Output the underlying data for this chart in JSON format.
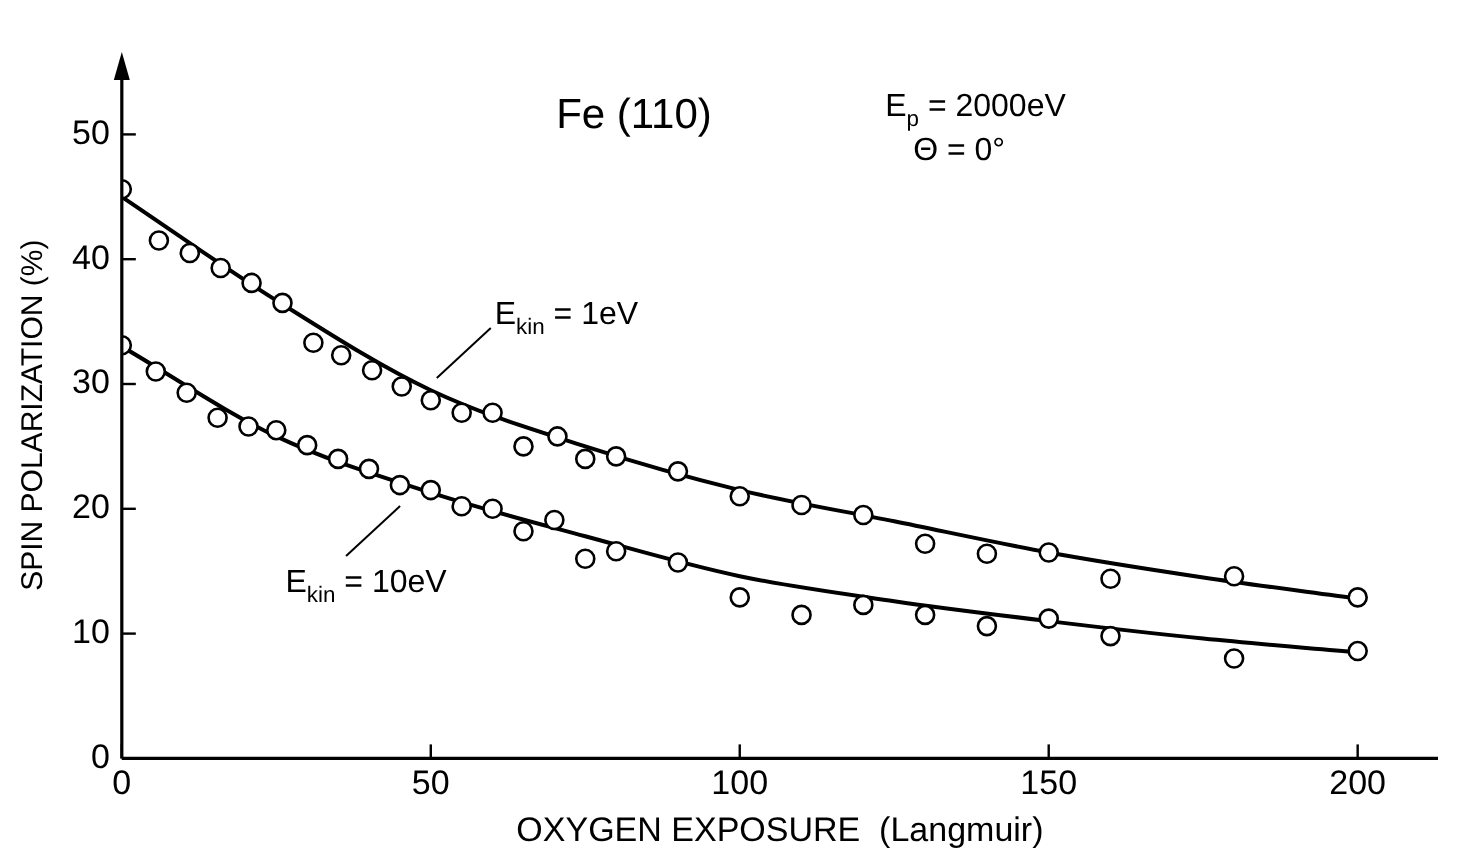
{
  "chart_data": {
    "type": "scatter",
    "title": "Fe (110)",
    "xlabel": "OXYGEN EXPOSURE  (Langmuir)",
    "ylabel": "SPIN POLARIZATION (%)",
    "xlim": [
      0,
      213
    ],
    "ylim": [
      0,
      55
    ],
    "xticks": [
      0,
      50,
      100,
      150,
      200
    ],
    "yticks": [
      0,
      10,
      20,
      30,
      40,
      50
    ],
    "grid": false,
    "legend": false,
    "marker": "circle",
    "annotations": [
      "E$_{p}$ = 2000eV",
      "Θ = 0°",
      {
        "text": "E$_{kin}$ = 1eV",
        "x": 50,
        "y": 30
      },
      {
        "text": "E$_{kin}$ = 10eV",
        "x": 46,
        "y": 20.7
      }
    ],
    "series": [
      {
        "color": "#000000",
        "x": [
          0,
          6,
          11,
          16,
          21,
          26,
          31,
          35.5,
          40.5,
          45.3,
          50,
          55,
          60,
          65,
          70.5,
          75,
          80,
          90,
          100,
          110,
          120,
          130,
          140,
          150,
          160,
          180,
          200
        ],
        "values": [
          45.6,
          41.5,
          40.5,
          39.3,
          38.1,
          36.5,
          33.3,
          32.3,
          31.1,
          29.8,
          28.7,
          27.7,
          27.7,
          25.0,
          25.8,
          24.0,
          24.2,
          23.0,
          21.0,
          20.3,
          19.5,
          17.2,
          16.4,
          16.5,
          14.4,
          14.6,
          12.9
        ]
      },
      {
        "color": "#000000",
        "x": [
          0,
          5.5,
          10.5,
          15.5,
          20.5,
          25,
          30,
          35,
          40,
          45,
          50,
          55,
          60,
          65,
          70,
          75,
          80,
          90,
          100,
          110,
          120,
          130,
          140,
          150,
          160,
          180,
          200
        ],
        "values": [
          33.1,
          31.0,
          29.3,
          27.3,
          26.6,
          26.3,
          25.1,
          24.0,
          23.2,
          21.9,
          21.5,
          20.2,
          20.0,
          18.2,
          19.1,
          16.0,
          16.6,
          15.7,
          12.9,
          11.5,
          12.3,
          11.5,
          10.6,
          11.2,
          9.8,
          8.0,
          8.6
        ]
      },
      {
        "type": "line",
        "marker": "none",
        "line_style": "solid",
        "color": "#000000",
        "x": [
          0,
          25,
          50,
          75,
          100,
          125,
          150,
          175,
          200
        ],
        "values": [
          45,
          36.7,
          29.5,
          25,
          21.5,
          19,
          16.5,
          14.5,
          12.8
        ]
      },
      {
        "type": "line",
        "marker": "none",
        "line_style": "solid",
        "color": "#000000",
        "x": [
          0,
          25,
          50,
          75,
          100,
          125,
          150,
          175,
          200
        ],
        "values": [
          33,
          25.8,
          21.3,
          17.8,
          14.6,
          12.6,
          11,
          9.6,
          8.5
        ]
      }
    ]
  }
}
